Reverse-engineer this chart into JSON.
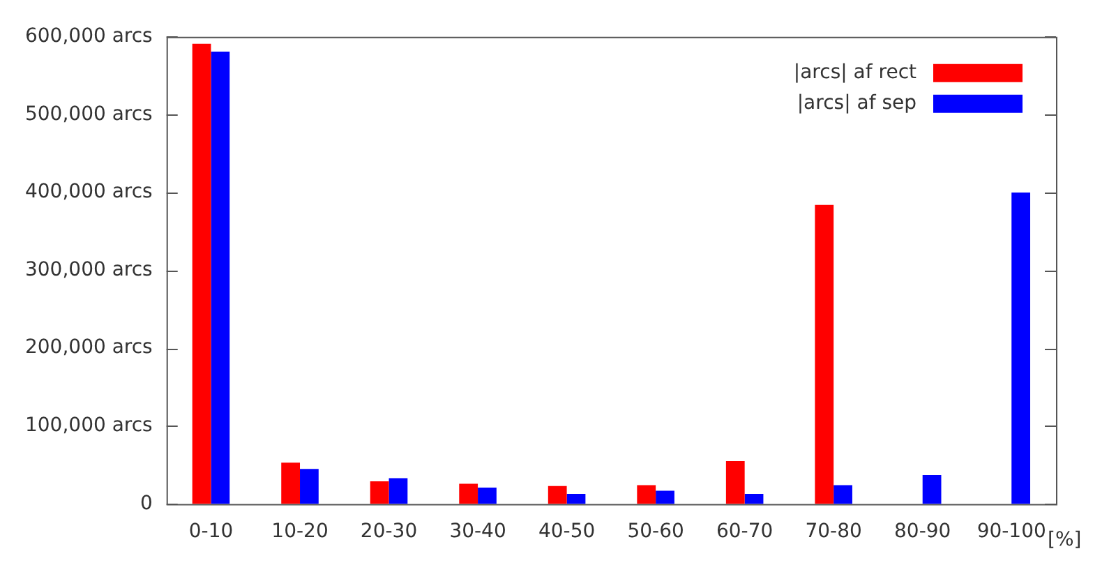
{
  "chart_data": {
    "type": "bar",
    "xlabel": "[%]",
    "categories": [
      "0-10",
      "10-20",
      "20-30",
      "30-40",
      "40-50",
      "50-60",
      "60-70",
      "70-80",
      "80-90",
      "90-100"
    ],
    "series": [
      {
        "name": "|arcs| af rect",
        "color": "#ff0000",
        "values": [
          591000,
          53000,
          29000,
          26000,
          23000,
          24000,
          55000,
          384000,
          0,
          0
        ]
      },
      {
        "name": "|arcs| af sep",
        "color": "#0000ff",
        "values": [
          581000,
          45000,
          33000,
          21000,
          13000,
          17000,
          13000,
          24000,
          37000,
          400000
        ]
      }
    ],
    "ylim": [
      0,
      600000
    ],
    "yticks": [
      {
        "value": 0,
        "label": "0"
      },
      {
        "value": 100000,
        "label": "100,000 arcs"
      },
      {
        "value": 200000,
        "label": "200,000 arcs"
      },
      {
        "value": 300000,
        "label": "300,000 arcs"
      },
      {
        "value": 400000,
        "label": "400,000 arcs"
      },
      {
        "value": 500000,
        "label": "500,000 arcs"
      },
      {
        "value": 600000,
        "label": "600,000 arcs"
      }
    ],
    "grid": false,
    "legend": "top right"
  }
}
